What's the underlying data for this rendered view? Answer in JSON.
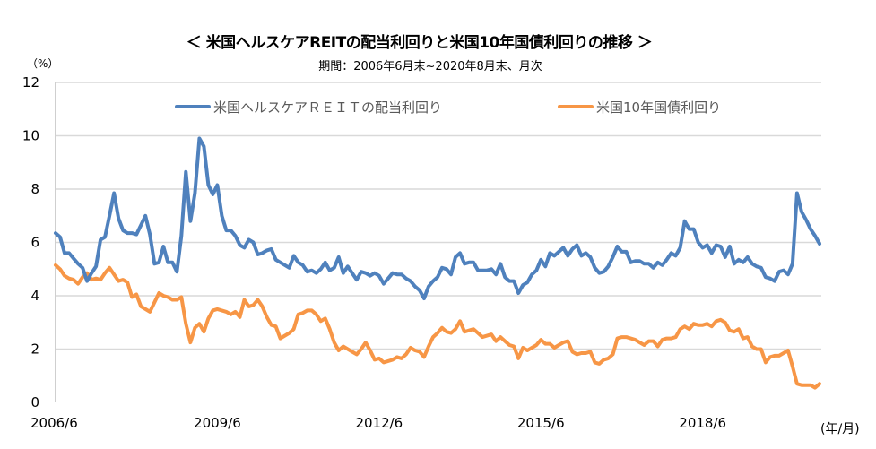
{
  "title": "＜ 米国ヘルスケアREITの配当利回りと米国10年国債利回りの推移 ＞",
  "subtitle": "期間：2006年6月末~2020年8月末、月次",
  "y_unit": "（%）",
  "x_unit": "(年/月)",
  "chart_data": {
    "type": "line",
    "title": "＜ 米国ヘルスケアREITの配当利回りと米国10年国債利回りの推移 ＞",
    "subtitle": "期間：2006年6月末~2020年8月末、月次",
    "ylabel": "（%）",
    "xlabel": "(年/月)",
    "x_start": "2006/6",
    "x_end": "2020/8",
    "frequency": "monthly",
    "ylim": [
      0,
      12
    ],
    "y_ticks": [
      "0",
      "2",
      "4",
      "6",
      "8",
      "10",
      "12"
    ],
    "x_ticks": [
      "2006/6",
      "2009/6",
      "2012/6",
      "2015/6",
      "2018/6"
    ],
    "grid": true,
    "legend_position": "top",
    "series": [
      {
        "name": "米国ヘルスケアＲＥＩＴの配当利回り",
        "color": "#4F81BD",
        "values": [
          6.35,
          6.2,
          5.6,
          5.6,
          5.4,
          5.2,
          5.05,
          4.55,
          4.85,
          5.1,
          6.1,
          6.2,
          7.0,
          7.85,
          6.9,
          6.45,
          6.35,
          6.35,
          6.3,
          6.65,
          7.0,
          6.3,
          5.2,
          5.25,
          5.85,
          5.25,
          5.25,
          4.9,
          6.25,
          8.65,
          6.8,
          7.85,
          9.9,
          9.6,
          8.15,
          7.8,
          8.15,
          7.0,
          6.45,
          6.45,
          6.25,
          5.9,
          5.8,
          6.1,
          6.0,
          5.55,
          5.6,
          5.7,
          5.75,
          5.35,
          5.25,
          5.15,
          5.05,
          5.5,
          5.25,
          5.15,
          4.9,
          4.95,
          4.85,
          5.0,
          5.25,
          4.95,
          5.05,
          5.45,
          4.85,
          5.1,
          4.85,
          4.6,
          4.9,
          4.85,
          4.75,
          4.85,
          4.75,
          4.45,
          4.65,
          4.85,
          4.8,
          4.8,
          4.65,
          4.55,
          4.35,
          4.2,
          3.9,
          4.35,
          4.55,
          4.7,
          5.05,
          5.0,
          4.8,
          5.45,
          5.6,
          5.2,
          5.25,
          5.25,
          4.95,
          4.95,
          4.95,
          5.0,
          4.8,
          5.2,
          4.7,
          4.55,
          4.55,
          4.1,
          4.4,
          4.5,
          4.8,
          4.95,
          5.35,
          5.1,
          5.6,
          5.5,
          5.65,
          5.8,
          5.5,
          5.75,
          5.9,
          5.5,
          5.6,
          5.45,
          5.05,
          4.85,
          4.9,
          5.1,
          5.45,
          5.85,
          5.65,
          5.65,
          5.25,
          5.3,
          5.3,
          5.2,
          5.2,
          5.05,
          5.25,
          5.15,
          5.35,
          5.6,
          5.5,
          5.8,
          6.8,
          6.5,
          6.5,
          6.0,
          5.8,
          5.9,
          5.6,
          5.9,
          5.85,
          5.45,
          5.85,
          5.2,
          5.35,
          5.25,
          5.45,
          5.2,
          5.1,
          5.05,
          4.7,
          4.65,
          4.55,
          4.9,
          4.95,
          4.8,
          5.2,
          7.85,
          7.15,
          6.85,
          6.5,
          6.25,
          5.95
        ]
      },
      {
        "name": "米国10年国債利回り",
        "color": "#F79646",
        "values": [
          5.15,
          5.0,
          4.75,
          4.65,
          4.6,
          4.45,
          4.7,
          4.85,
          4.6,
          4.65,
          4.6,
          4.85,
          5.05,
          4.8,
          4.55,
          4.6,
          4.5,
          3.95,
          4.05,
          3.6,
          3.5,
          3.4,
          3.75,
          4.1,
          4.0,
          3.95,
          3.85,
          3.85,
          3.95,
          2.95,
          2.25,
          2.8,
          2.95,
          2.65,
          3.15,
          3.45,
          3.5,
          3.45,
          3.4,
          3.3,
          3.4,
          3.2,
          3.85,
          3.6,
          3.65,
          3.85,
          3.6,
          3.2,
          2.9,
          2.85,
          2.4,
          2.5,
          2.6,
          2.75,
          3.3,
          3.35,
          3.45,
          3.45,
          3.3,
          3.05,
          3.15,
          2.75,
          2.25,
          1.95,
          2.1,
          2.0,
          1.9,
          1.8,
          2.0,
          2.25,
          1.95,
          1.6,
          1.65,
          1.5,
          1.55,
          1.6,
          1.7,
          1.65,
          1.8,
          2.05,
          1.95,
          1.9,
          1.7,
          2.1,
          2.45,
          2.6,
          2.8,
          2.65,
          2.6,
          2.75,
          3.05,
          2.65,
          2.7,
          2.75,
          2.6,
          2.45,
          2.5,
          2.55,
          2.3,
          2.45,
          2.3,
          2.15,
          2.1,
          1.65,
          2.05,
          1.95,
          2.05,
          2.15,
          2.35,
          2.2,
          2.2,
          2.05,
          2.15,
          2.25,
          2.3,
          1.9,
          1.8,
          1.85,
          1.85,
          1.9,
          1.5,
          1.45,
          1.6,
          1.65,
          1.8,
          2.4,
          2.45,
          2.45,
          2.4,
          2.35,
          2.25,
          2.15,
          2.3,
          2.3,
          2.1,
          2.35,
          2.4,
          2.4,
          2.45,
          2.75,
          2.85,
          2.75,
          2.95,
          2.9,
          2.9,
          2.95,
          2.85,
          3.05,
          3.1,
          3.0,
          2.7,
          2.65,
          2.75,
          2.4,
          2.45,
          2.1,
          2.0,
          2.0,
          1.5,
          1.7,
          1.75,
          1.75,
          1.85,
          1.95,
          1.35,
          0.7,
          0.65,
          0.65,
          0.65,
          0.55,
          0.7
        ]
      }
    ]
  }
}
